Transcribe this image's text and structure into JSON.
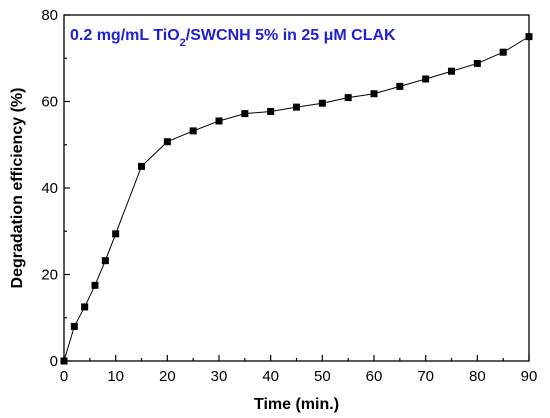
{
  "chart_data": {
    "type": "line",
    "title": "",
    "xlabel": "Time (min.)",
    "ylabel": "Degradation efficiency (%)",
    "xlim": [
      0,
      90
    ],
    "ylim": [
      0,
      80
    ],
    "xticks": [
      0,
      10,
      20,
      30,
      40,
      50,
      60,
      70,
      80,
      90
    ],
    "yticks": [
      0,
      20,
      40,
      60,
      80
    ],
    "grid": false,
    "legend": "none",
    "annotation": {
      "parts": [
        {
          "text": "0.2 mg/mL TiO",
          "sub": false
        },
        {
          "text": "2",
          "sub": true
        },
        {
          "text": "/SWCNH 5% in 25 μM CLAK",
          "sub": false
        }
      ],
      "color": "#1f1fd6",
      "placement": "top-left"
    },
    "series": [
      {
        "marker": "square",
        "color": "#000000",
        "x": [
          0,
          2,
          4,
          6,
          8,
          10,
          15,
          20,
          25,
          30,
          35,
          40,
          45,
          50,
          55,
          60,
          65,
          70,
          75,
          80,
          85,
          90
        ],
        "y": [
          0,
          8,
          12.5,
          17.5,
          23.2,
          29.4,
          45,
          50.7,
          53.2,
          55.5,
          57.2,
          57.7,
          58.7,
          59.6,
          60.9,
          61.8,
          63.5,
          65.2,
          67,
          68.8,
          71.4,
          75
        ]
      }
    ]
  }
}
